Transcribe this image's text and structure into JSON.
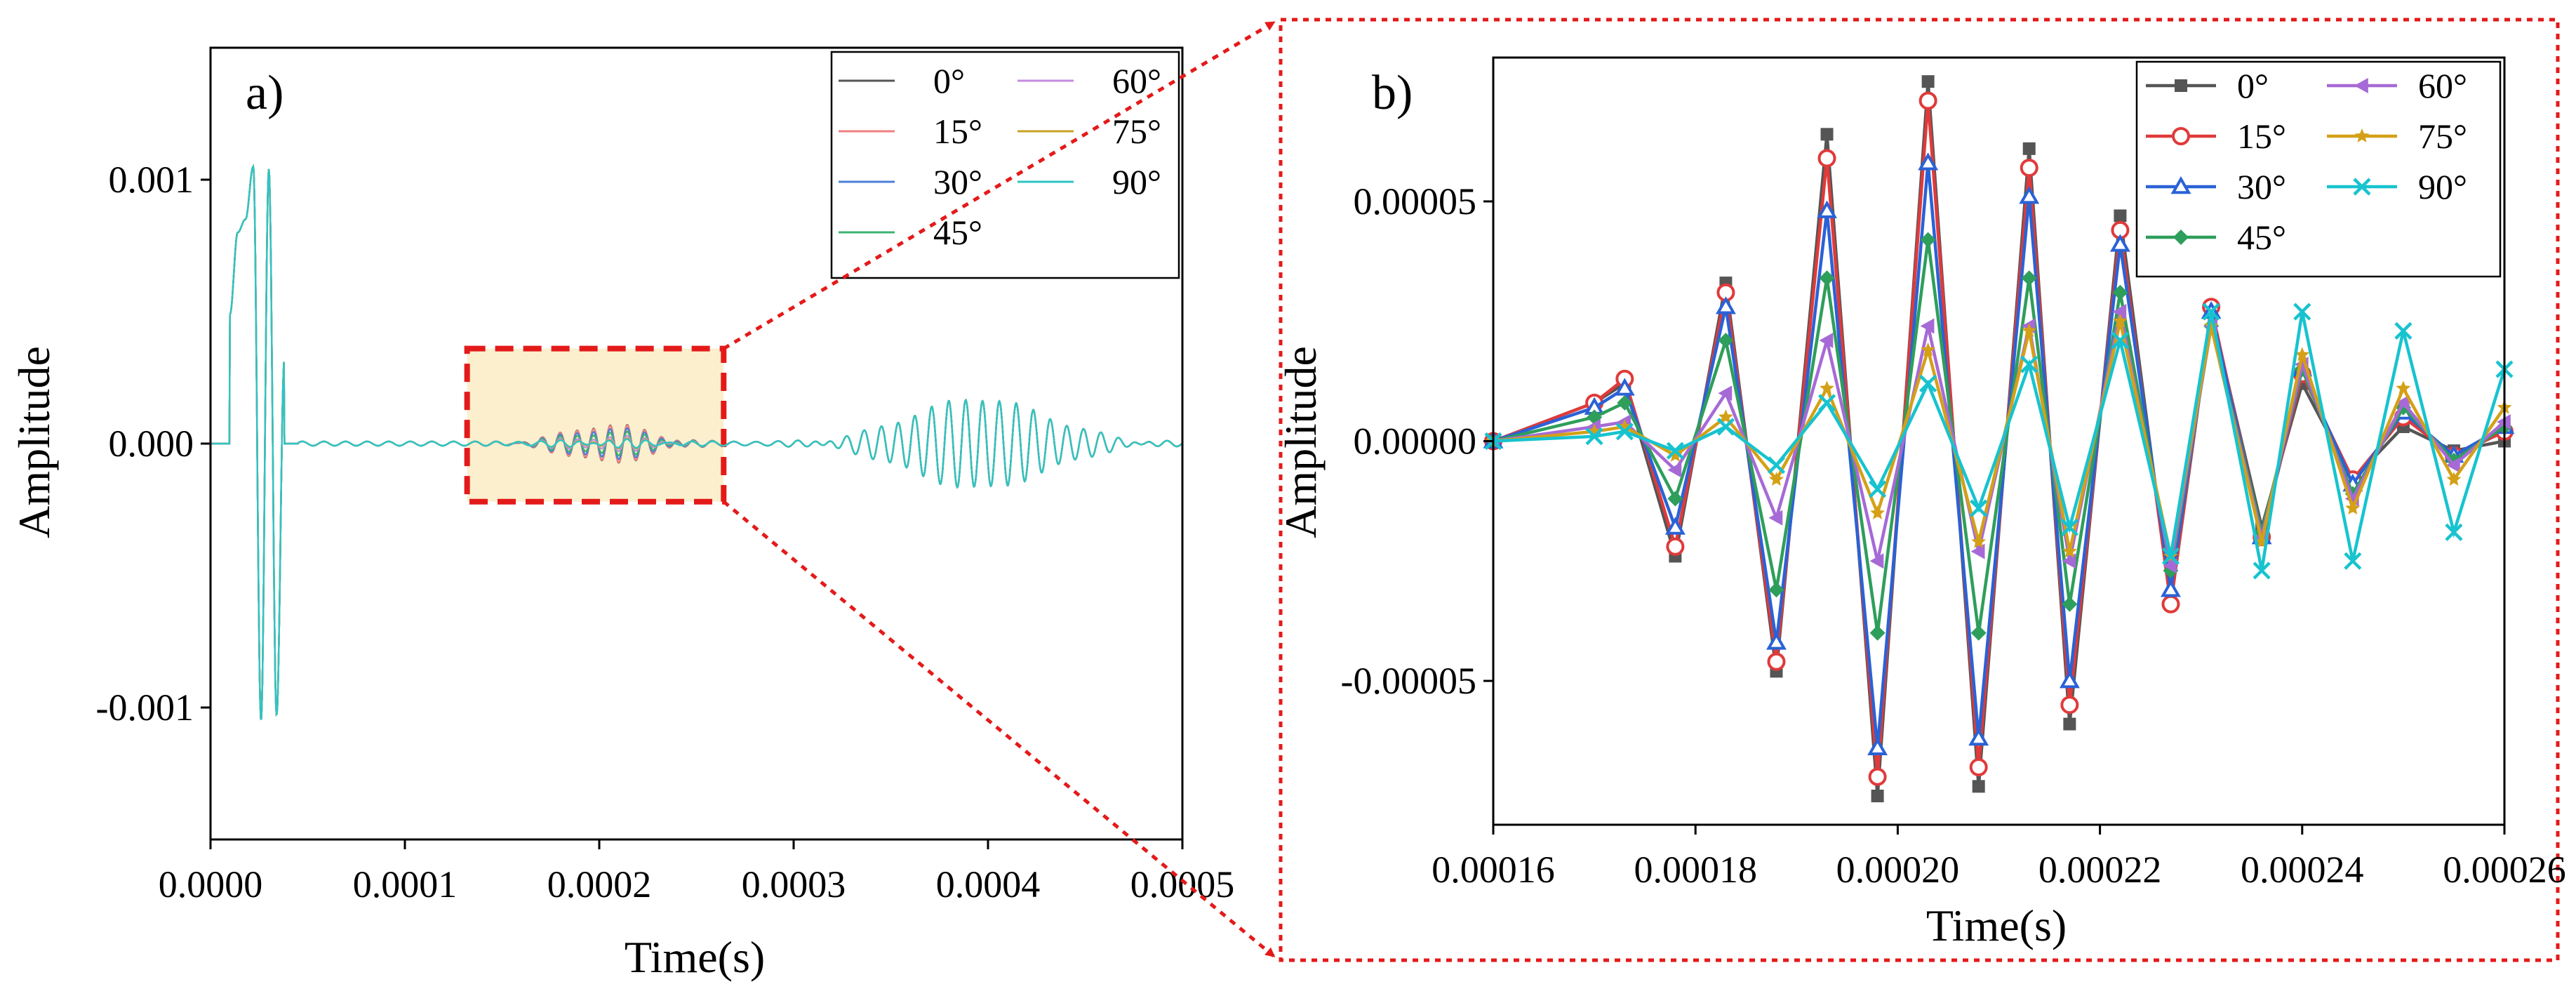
{
  "panels": {
    "a": {
      "label": "a)"
    },
    "b": {
      "label": "b)"
    }
  },
  "chart_data": [
    {
      "id": "a",
      "type": "line",
      "panel_label": "a)",
      "xlabel": "Time(s)",
      "ylabel": "Amplitude",
      "xlim": [
        0,
        0.0005
      ],
      "ylim": [
        -0.0015,
        0.0015
      ],
      "x_ticks": [
        0,
        0.0001,
        0.0002,
        0.0003,
        0.0004,
        0.0005
      ],
      "x_tick_labels": [
        "0.0000",
        "0.0001",
        "0.0002",
        "0.0003",
        "0.0004",
        "0.0005"
      ],
      "y_ticks": [
        -0.001,
        0,
        0.001
      ],
      "y_tick_labels": [
        "-0.001",
        "0.000",
        "0.001"
      ],
      "grid": false,
      "legend_position": "top-right",
      "legend_columns": 2,
      "zoom_region": {
        "x": [
          0.000132,
          0.000264
        ],
        "y": [
          -0.00022,
          0.00036
        ]
      },
      "series": [
        {
          "name": "0°",
          "color": "#555555",
          "excitation_scale": 1.0,
          "window_scale": 1.0,
          "late_scale": 1.0
        },
        {
          "name": "15°",
          "color": "#f08080",
          "excitation_scale": 1.0,
          "window_scale": 0.97,
          "late_scale": 1.0
        },
        {
          "name": "30°",
          "color": "#4a7fd8",
          "excitation_scale": 1.0,
          "window_scale": 0.8,
          "late_scale": 1.0
        },
        {
          "name": "45°",
          "color": "#3cb371",
          "excitation_scale": 1.0,
          "window_scale": 0.6,
          "late_scale": 1.0
        },
        {
          "name": "60°",
          "color": "#c58be0",
          "excitation_scale": 1.0,
          "window_scale": 0.35,
          "late_scale": 1.0
        },
        {
          "name": "75°",
          "color": "#c9a227",
          "excitation_scale": 1.0,
          "window_scale": 0.2,
          "late_scale": 1.0
        },
        {
          "name": "90°",
          "color": "#2ec4c4",
          "excitation_scale": 1.0,
          "window_scale": 0.15,
          "late_scale": 1.0
        }
      ],
      "features": {
        "excitation_peaks": [
          {
            "x": 1e-05,
            "y": 0.00049
          },
          {
            "x": 1.4e-05,
            "y": 0.0008
          },
          {
            "x": 1.8e-05,
            "y": 0.00085
          },
          {
            "x": 2.2e-05,
            "y": 0.00105
          },
          {
            "x": 2.6e-05,
            "y": -0.00105
          },
          {
            "x": 3e-05,
            "y": 0.00104
          },
          {
            "x": 3.4e-05,
            "y": -0.00103
          },
          {
            "x": 3.8e-05,
            "y": 0.00032
          }
        ],
        "late_packet_peak_amplitude": 0.00017,
        "late_packet_center_x": 0.000395
      }
    },
    {
      "id": "b",
      "type": "line",
      "panel_label": "b)",
      "xlabel": "Time(s)",
      "ylabel": "Amplitude",
      "xlim": [
        0.00016,
        0.00026
      ],
      "ylim": [
        -8e-05,
        8e-05
      ],
      "x_ticks": [
        0.00016,
        0.00018,
        0.0002,
        0.00022,
        0.00024,
        0.00026
      ],
      "x_tick_labels": [
        "0.00016",
        "0.00018",
        "0.00020",
        "0.00022",
        "0.00024",
        "0.00026"
      ],
      "y_ticks": [
        -5e-05,
        0,
        5e-05
      ],
      "y_tick_labels": [
        "-0.00005",
        "0.00000",
        "0.00005"
      ],
      "grid": false,
      "legend_position": "top-right",
      "legend_columns": 2,
      "series": [
        {
          "name": "0°",
          "color": "#555555",
          "marker": "square",
          "x": [
            0.00016,
            0.00017,
            0.000173,
            0.000178,
            0.000183,
            0.000188,
            0.000193,
            0.000198,
            0.000203,
            0.000208,
            0.000213,
            0.000217,
            0.000222,
            0.000227,
            0.000231,
            0.000236,
            0.00024,
            0.000245,
            0.00025,
            0.000255,
            0.00026
          ],
          "y": [
            0.0,
            8e-06,
            1.2e-05,
            -2.4e-05,
            3.3e-05,
            -4.8e-05,
            6.4e-05,
            -7.4e-05,
            7.5e-05,
            -7.2e-05,
            6.1e-05,
            -5.9e-05,
            4.7e-05,
            -3.4e-05,
            2.7e-05,
            -1.8e-05,
            1.2e-05,
            -8e-06,
            3e-06,
            -2e-06,
            0.0
          ]
        },
        {
          "name": "15°",
          "color": "#e03a3a",
          "marker": "circle",
          "x": [
            0.00016,
            0.00017,
            0.000173,
            0.000178,
            0.000183,
            0.000188,
            0.000193,
            0.000198,
            0.000203,
            0.000208,
            0.000213,
            0.000217,
            0.000222,
            0.000227,
            0.000231,
            0.000236,
            0.00024,
            0.000245,
            0.00025,
            0.000255,
            0.00026
          ],
          "y": [
            0.0,
            8e-06,
            1.3e-05,
            -2.2e-05,
            3.1e-05,
            -4.6e-05,
            5.9e-05,
            -7e-05,
            7.1e-05,
            -6.8e-05,
            5.7e-05,
            -5.5e-05,
            4.4e-05,
            -3.4e-05,
            2.8e-05,
            -2e-05,
            1.4e-05,
            -8e-06,
            5e-06,
            -3e-06,
            2e-06
          ]
        },
        {
          "name": "30°",
          "color": "#2a62d6",
          "marker": "triangle",
          "x": [
            0.00016,
            0.00017,
            0.000173,
            0.000178,
            0.000183,
            0.000188,
            0.000193,
            0.000198,
            0.000203,
            0.000208,
            0.000213,
            0.000217,
            0.000222,
            0.000227,
            0.000231,
            0.000236,
            0.00024,
            0.000245,
            0.00025,
            0.000255,
            0.00026
          ],
          "y": [
            0.0,
            7e-06,
            1.1e-05,
            -1.8e-05,
            2.8e-05,
            -4.2e-05,
            4.8e-05,
            -6.4e-05,
            5.8e-05,
            -6.2e-05,
            5.1e-05,
            -5e-05,
            4.1e-05,
            -3.1e-05,
            2.7e-05,
            -2e-05,
            1.5e-05,
            -9e-06,
            6e-06,
            -3e-06,
            3e-06
          ]
        },
        {
          "name": "45°",
          "color": "#2e9e5b",
          "marker": "diamond",
          "x": [
            0.00016,
            0.00017,
            0.000173,
            0.000178,
            0.000183,
            0.000188,
            0.000193,
            0.000198,
            0.000203,
            0.000208,
            0.000213,
            0.000217,
            0.000222,
            0.000227,
            0.000231,
            0.000236,
            0.00024,
            0.000245,
            0.00025,
            0.000255,
            0.00026
          ],
          "y": [
            0.0,
            5e-06,
            8e-06,
            -1.2e-05,
            2.1e-05,
            -3.1e-05,
            3.4e-05,
            -4e-05,
            4.2e-05,
            -4e-05,
            3.4e-05,
            -3.4e-05,
            3.1e-05,
            -2.7e-05,
            2.4e-05,
            -1.9e-05,
            1.5e-05,
            -1.1e-05,
            7e-06,
            -4e-06,
            3e-06
          ]
        },
        {
          "name": "60°",
          "color": "#a66ad6",
          "marker": "left-triangle",
          "x": [
            0.00016,
            0.00017,
            0.000173,
            0.000178,
            0.000183,
            0.000188,
            0.000193,
            0.000198,
            0.000203,
            0.000208,
            0.000213,
            0.000217,
            0.000222,
            0.000227,
            0.000231,
            0.000236,
            0.00024,
            0.000245,
            0.00025,
            0.000255,
            0.00026
          ],
          "y": [
            0.0,
            3e-06,
            4e-06,
            -6e-06,
            1e-05,
            -1.6e-05,
            2.1e-05,
            -2.5e-05,
            2.4e-05,
            -2.3e-05,
            2.4e-05,
            -2.5e-05,
            2.7e-05,
            -2.6e-05,
            2.4e-05,
            -2e-05,
            1.6e-05,
            -1.2e-05,
            8e-06,
            -5e-06,
            4e-06
          ]
        },
        {
          "name": "75°",
          "color": "#d4a017",
          "marker": "star",
          "x": [
            0.00016,
            0.00017,
            0.000173,
            0.000178,
            0.000183,
            0.000188,
            0.000193,
            0.000198,
            0.000203,
            0.000208,
            0.000213,
            0.000217,
            0.000222,
            0.000227,
            0.000231,
            0.000236,
            0.00024,
            0.000245,
            0.00025,
            0.000255,
            0.00026
          ],
          "y": [
            0.0,
            2e-06,
            3e-06,
            -3e-06,
            5e-06,
            -8e-06,
            1.1e-05,
            -1.5e-05,
            1.9e-05,
            -2.1e-05,
            2.3e-05,
            -2.3e-05,
            2.5e-05,
            -2.4e-05,
            2.4e-05,
            -2.1e-05,
            1.8e-05,
            -1.4e-05,
            1.1e-05,
            -8e-06,
            7e-06
          ]
        },
        {
          "name": "90°",
          "color": "#17c3cf",
          "marker": "x",
          "x": [
            0.00016,
            0.00017,
            0.000173,
            0.000178,
            0.000183,
            0.000188,
            0.000193,
            0.000198,
            0.000203,
            0.000208,
            0.000213,
            0.000217,
            0.000222,
            0.000227,
            0.000231,
            0.000236,
            0.00024,
            0.000245,
            0.00025,
            0.000255,
            0.00026
          ],
          "y": [
            0.0,
            1e-06,
            2e-06,
            -2e-06,
            3e-06,
            -5e-06,
            8e-06,
            -1e-05,
            1.2e-05,
            -1.4e-05,
            1.6e-05,
            -1.8e-05,
            2.1e-05,
            -2.4e-05,
            2.7e-05,
            -2.7e-05,
            2.7e-05,
            -2.5e-05,
            2.3e-05,
            -1.9e-05,
            1.5e-05
          ]
        }
      ]
    }
  ]
}
